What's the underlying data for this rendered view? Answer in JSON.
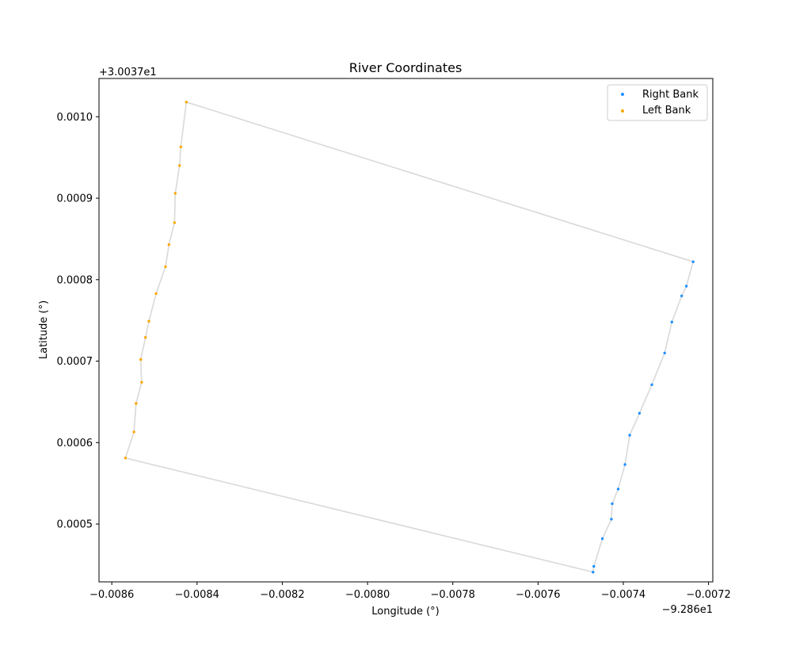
{
  "chart_data": {
    "type": "scatter",
    "title": "River Coordinates",
    "xlabel": "Longitude (°)",
    "ylabel": "Latitude (°)",
    "x_offset_label": "−9.286e1",
    "y_offset_label": "+3.0037e1",
    "xlim": [
      -0.00863,
      -0.00719
    ],
    "ylim": [
      0.000429,
      0.001047
    ],
    "x_ticks": [
      -0.0086,
      -0.0084,
      -0.0082,
      -0.008,
      -0.0078,
      -0.0076,
      -0.0074,
      -0.0072
    ],
    "x_tick_labels": [
      "−0.0086",
      "−0.0084",
      "−0.0082",
      "−0.0080",
      "−0.0078",
      "−0.0076",
      "−0.0074",
      "−0.0072"
    ],
    "y_ticks": [
      0.0005,
      0.0006,
      0.0007,
      0.0008,
      0.0009,
      0.001
    ],
    "y_tick_labels": [
      "0.0005",
      "0.0006",
      "0.0007",
      "0.0008",
      "0.0009",
      "0.0010"
    ],
    "grid": false,
    "legend": "top-right",
    "outline_color": "#d9d9d9",
    "series": [
      {
        "name": "Right Bank",
        "color": "#1f8fff",
        "points": [
          [
            -0.007236,
            0.000822
          ],
          [
            -0.007252,
            0.000792
          ],
          [
            -0.007263,
            0.00078
          ],
          [
            -0.007286,
            0.000748
          ],
          [
            -0.007303,
            0.00071
          ],
          [
            -0.007333,
            0.000671
          ],
          [
            -0.007362,
            0.000636
          ],
          [
            -0.007385,
            0.000609
          ],
          [
            -0.007396,
            0.000573
          ],
          [
            -0.007412,
            0.000543
          ],
          [
            -0.007426,
            0.000525
          ],
          [
            -0.007428,
            0.000506
          ],
          [
            -0.007449,
            0.000482
          ],
          [
            -0.007469,
            0.000448
          ],
          [
            -0.007471,
            0.000441
          ]
        ]
      },
      {
        "name": "Left Bank",
        "color": "#ffa500",
        "points": [
          [
            -0.008568,
            0.000581
          ],
          [
            -0.008548,
            0.000613
          ],
          [
            -0.008543,
            0.000648
          ],
          [
            -0.00853,
            0.000674
          ],
          [
            -0.008532,
            0.000702
          ],
          [
            -0.008521,
            0.000729
          ],
          [
            -0.008513,
            0.000749
          ],
          [
            -0.008496,
            0.000783
          ],
          [
            -0.008474,
            0.000816
          ],
          [
            -0.008466,
            0.000843
          ],
          [
            -0.008453,
            0.00087
          ],
          [
            -0.008451,
            0.000906
          ],
          [
            -0.008441,
            0.00094
          ],
          [
            -0.008438,
            0.000963
          ],
          [
            -0.008425,
            0.001018
          ]
        ]
      }
    ]
  }
}
